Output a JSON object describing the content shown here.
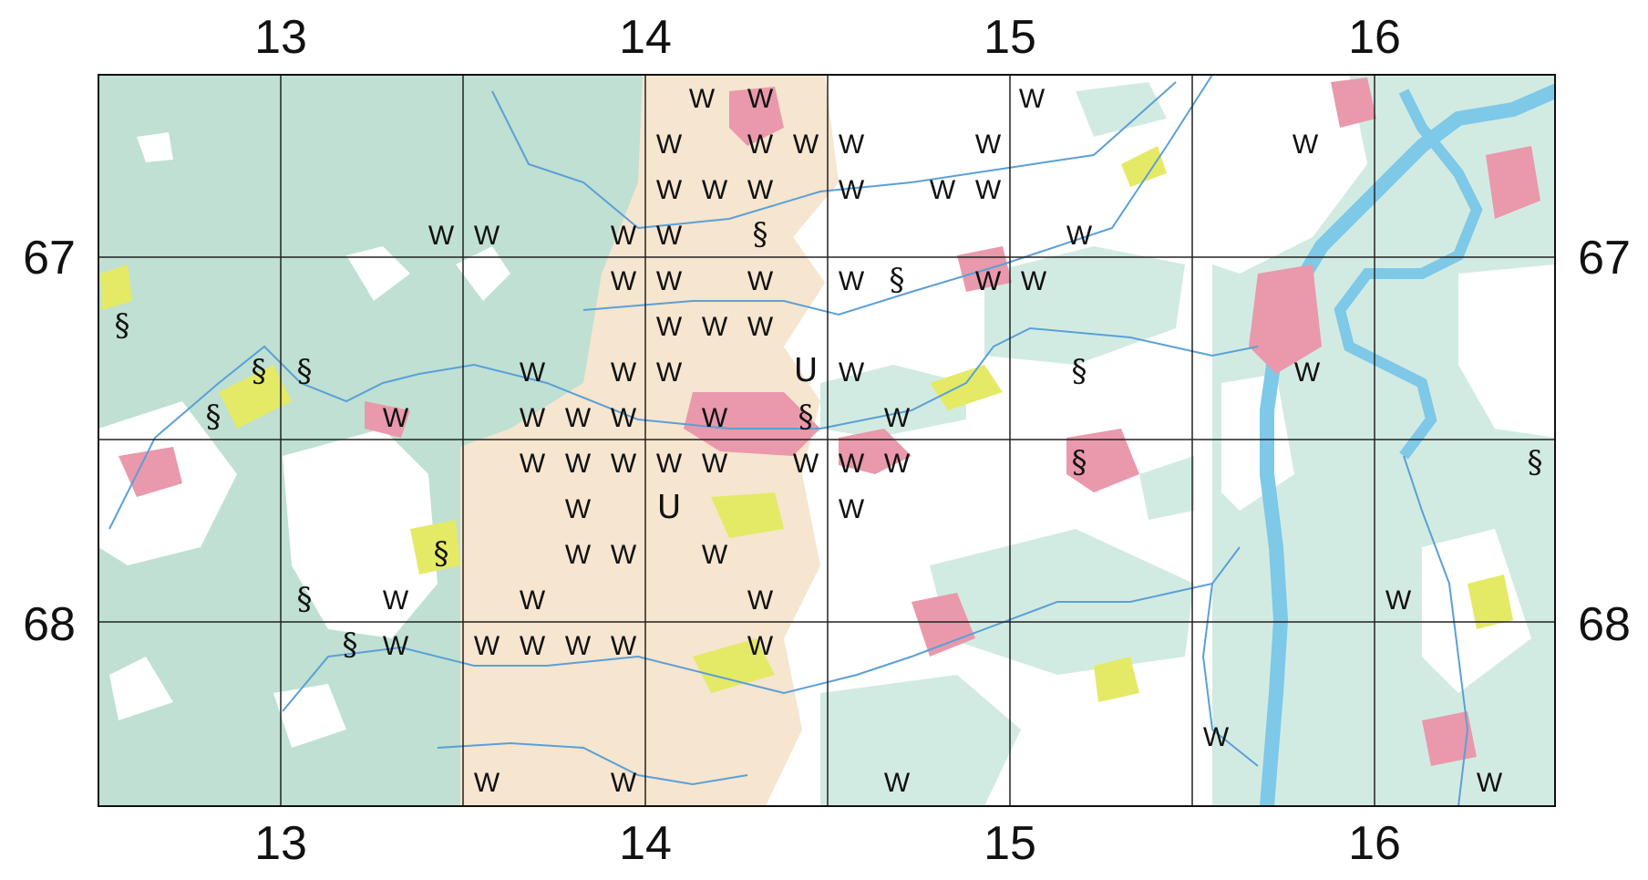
{
  "map": {
    "col_labels": [
      "13",
      "14",
      "15",
      "16"
    ],
    "row_labels": [
      "67",
      "68"
    ],
    "colors": {
      "forest": "#bfe0d2",
      "forest_light": "#d2ebe2",
      "sand": "#f6e5cf",
      "settlement": "#e999ab",
      "meadow": "#e4ea66",
      "water": "#7ec8e8",
      "stream": "#5aa0d8",
      "grid": "#222222"
    },
    "symbols": [
      "W",
      "W",
      "W",
      "W",
      "W",
      "W",
      "W",
      "W",
      "W",
      "W",
      "W",
      "W",
      "W",
      "W",
      "W",
      "W",
      "W",
      "W",
      "W",
      "W",
      "W",
      "W",
      "W",
      "W",
      "W",
      "W",
      "W",
      "W",
      "W",
      "W",
      "W",
      "W",
      "W",
      "W",
      "W",
      "W",
      "W",
      "W",
      "W",
      "W",
      "W",
      "W",
      "W",
      "W",
      "W",
      "W",
      "W",
      "W",
      "W",
      "W",
      "W",
      "W",
      "W",
      "W",
      "W",
      "W",
      "W",
      "W",
      "W",
      "W",
      "W",
      "W",
      "W",
      "W",
      "W",
      "W",
      "W",
      "W",
      "§",
      "§",
      "§",
      "§",
      "§",
      "§",
      "§",
      "§",
      "§",
      "§",
      "§",
      "§",
      "§",
      "U",
      "U"
    ]
  }
}
